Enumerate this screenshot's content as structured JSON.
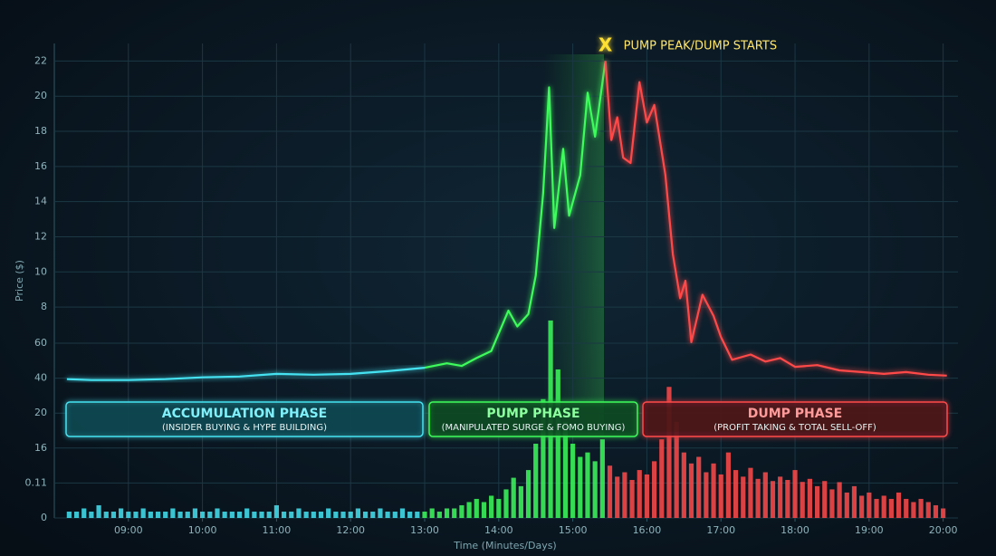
{
  "chart_data": [
    {
      "type": "line",
      "y_label": "Price ($)",
      "x_label": "Time (Minutes/Days)",
      "annotation": {
        "marker": "X",
        "text": "PUMP PEAK/DUMP STARTS"
      },
      "xlim": [
        8,
        20.2
      ],
      "xticks": [
        {
          "value": 9,
          "label": "09:00"
        },
        {
          "value": 10,
          "label": "10:00"
        },
        {
          "value": 11,
          "label": "11:00"
        },
        {
          "value": 12,
          "label": "12:00"
        },
        {
          "value": 13,
          "label": "13:00"
        },
        {
          "value": 14,
          "label": "14:00"
        },
        {
          "value": 15,
          "label": "15:00"
        },
        {
          "value": 16,
          "label": "16:00"
        },
        {
          "value": 17,
          "label": "17:00"
        },
        {
          "value": 18,
          "label": "18:00"
        },
        {
          "value": 19,
          "label": "19:00"
        },
        {
          "value": 20,
          "label": "20:00"
        }
      ],
      "ylim": [
        -4,
        23
      ],
      "yticks": [
        22,
        20,
        18,
        16,
        14,
        12,
        10,
        8
      ],
      "grid": true,
      "series": [
        {
          "name": "ACCUMULATION PHASE",
          "description": "(INSIDER BUYING & HYPE BUILDING)",
          "color": "#45e3f2",
          "x": [
            8.17,
            8.5,
            9,
            9.5,
            10,
            10.5,
            11,
            11.5,
            12,
            12.5,
            13
          ],
          "values": [
            3.9,
            3.85,
            3.85,
            3.9,
            4.0,
            4.05,
            4.2,
            4.15,
            4.2,
            4.35,
            4.55
          ]
        },
        {
          "name": "PUMP PHASE",
          "description": "(MANIPULATED SURGE & FOMO BUYING)",
          "color": "#3dfc5c",
          "x": [
            13,
            13.3,
            13.5,
            13.7,
            13.9,
            14.0,
            14.13,
            14.25,
            14.4,
            14.5,
            14.6,
            14.68,
            14.75,
            14.87,
            14.95,
            15.1,
            15.2,
            15.3,
            15.44
          ],
          "values": [
            4.55,
            4.8,
            4.65,
            5.1,
            5.5,
            6.5,
            7.8,
            6.9,
            7.6,
            9.8,
            14.5,
            20.5,
            12.5,
            17,
            13.2,
            15.5,
            20.2,
            17.7,
            22
          ]
        },
        {
          "name": "DUMP PHASE",
          "description": "(PROFIT TAKING & TOTAL SELL-OFF)",
          "color": "#ff4a4a",
          "x": [
            15.44,
            15.52,
            15.6,
            15.68,
            15.78,
            15.9,
            16.0,
            16.1,
            16.25,
            16.35,
            16.45,
            16.52,
            16.6,
            16.75,
            16.9,
            17.0,
            17.15,
            17.4,
            17.6,
            17.8,
            18.0,
            18.3,
            18.6,
            18.9,
            19.2,
            19.5,
            19.8,
            20.05
          ],
          "values": [
            22,
            17.5,
            18.8,
            16.5,
            16.2,
            20.8,
            18.5,
            19.5,
            15.5,
            11,
            8.5,
            9.5,
            6.0,
            8.7,
            7.5,
            6.3,
            5.0,
            5.3,
            4.9,
            5.1,
            4.6,
            4.7,
            4.4,
            4.3,
            4.2,
            4.3,
            4.15,
            4.1
          ]
        }
      ]
    },
    {
      "type": "bar",
      "yticks": [
        0,
        0.11,
        16,
        20,
        40,
        60
      ],
      "series": [
        {
          "color": "#45e3f2",
          "x": [
            8.2,
            8.3,
            8.4,
            8.5,
            8.6,
            8.7,
            8.8,
            8.9,
            9.0,
            9.1,
            9.2,
            9.3,
            9.4,
            9.5,
            9.6,
            9.7,
            9.8,
            9.9,
            10.0,
            10.1,
            10.2,
            10.3,
            10.4,
            10.5,
            10.6,
            10.7,
            10.8,
            10.9,
            11.0,
            11.1,
            11.2,
            11.3,
            11.4,
            11.5,
            11.6,
            11.7,
            11.8,
            11.9,
            12.0,
            12.1,
            12.2,
            12.3,
            12.4,
            12.5,
            12.6,
            12.7,
            12.8,
            12.9
          ],
          "values": [
            0.02,
            0.02,
            0.03,
            0.02,
            0.04,
            0.02,
            0.02,
            0.03,
            0.02,
            0.02,
            0.03,
            0.02,
            0.02,
            0.02,
            0.03,
            0.02,
            0.02,
            0.03,
            0.02,
            0.02,
            0.03,
            0.02,
            0.02,
            0.02,
            0.03,
            0.02,
            0.02,
            0.02,
            0.04,
            0.02,
            0.02,
            0.03,
            0.02,
            0.02,
            0.02,
            0.03,
            0.02,
            0.02,
            0.02,
            0.03,
            0.02,
            0.02,
            0.03,
            0.02,
            0.02,
            0.03,
            0.02,
            0.02
          ]
        },
        {
          "color": "#3dfc5c",
          "x": [
            13.0,
            13.1,
            13.2,
            13.3,
            13.4,
            13.5,
            13.6,
            13.7,
            13.8,
            13.9,
            14.0,
            14.1,
            14.2,
            14.3,
            14.4,
            14.5,
            14.6,
            14.7,
            14.8,
            14.9,
            15.0,
            15.1,
            15.2,
            15.3,
            15.4
          ],
          "values": [
            0.02,
            0.03,
            0.02,
            0.03,
            0.03,
            0.04,
            0.05,
            0.06,
            0.05,
            0.07,
            0.06,
            0.09,
            2.5,
            0.1,
            6,
            16.5,
            28,
            73,
            45,
            19,
            16.5,
            12,
            14,
            10,
            17
          ]
        },
        {
          "color": "#ff4a4a",
          "x": [
            15.5,
            15.6,
            15.7,
            15.8,
            15.9,
            16.0,
            16.1,
            16.2,
            16.3,
            16.4,
            16.5,
            16.6,
            16.7,
            16.8,
            16.9,
            17.0,
            17.1,
            17.2,
            17.3,
            17.4,
            17.5,
            17.6,
            17.7,
            17.8,
            17.9,
            18.0,
            18.1,
            18.2,
            18.3,
            18.4,
            18.5,
            18.6,
            18.7,
            18.8,
            18.9,
            19.0,
            19.1,
            19.2,
            19.3,
            19.4,
            19.5,
            19.6,
            19.7,
            19.8,
            19.9,
            20.0
          ],
          "values": [
            8,
            3,
            5,
            1.5,
            6,
            4,
            10,
            17,
            35,
            19,
            14,
            9,
            12,
            5,
            9,
            4,
            14,
            6,
            3,
            7,
            2,
            5,
            1,
            3,
            1.5,
            6,
            0.6,
            2,
            0.1,
            1,
            0.09,
            0.5,
            0.08,
            0.1,
            0.07,
            0.08,
            0.06,
            0.07,
            0.06,
            0.08,
            0.06,
            0.05,
            0.06,
            0.05,
            0.04,
            0.03
          ]
        }
      ]
    }
  ]
}
